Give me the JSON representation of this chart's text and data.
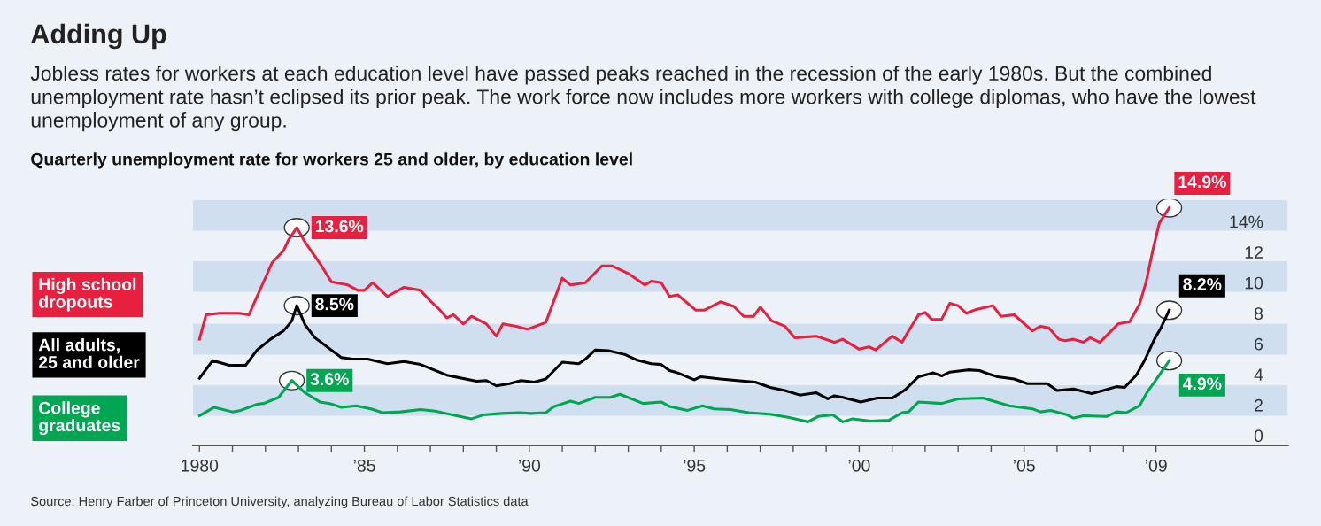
{
  "chart_data": {
    "type": "line",
    "title": "Adding Up",
    "subtitle": "Jobless rates for workers at each education level have passed peaks reached in the recession of the early 1980s. But the combined unemployment rate hasn’t eclipsed its prior peak. The work force now includes more workers with college diplomas, who have the lowest unemployment of any group.",
    "ylabel": "Quarterly unemployment rate for workers 25 and older, by education level",
    "annotations": [
      "Source: Henry Farber of Princeton University, analyzing Bureau of Labor Statistics data"
    ],
    "xlim": [
      1979.8,
      2013
    ],
    "ylim": [
      -0.65,
      15.45
    ],
    "xticks": [
      {
        "value": 1980,
        "label": "1980"
      },
      {
        "value": 1981,
        "label": null
      },
      {
        "value": 1982,
        "label": null
      },
      {
        "value": 1983,
        "label": null
      },
      {
        "value": 1984,
        "label": null
      },
      {
        "value": 1985,
        "label": "’85"
      },
      {
        "value": 1986,
        "label": null
      },
      {
        "value": 1987,
        "label": null
      },
      {
        "value": 1988,
        "label": null
      },
      {
        "value": 1989,
        "label": null
      },
      {
        "value": 1990,
        "label": "’90"
      },
      {
        "value": 1991,
        "label": null
      },
      {
        "value": 1992,
        "label": null
      },
      {
        "value": 1993,
        "label": null
      },
      {
        "value": 1994,
        "label": null
      },
      {
        "value": 1995,
        "label": "’95"
      },
      {
        "value": 1996,
        "label": null
      },
      {
        "value": 1997,
        "label": null
      },
      {
        "value": 1998,
        "label": null
      },
      {
        "value": 1999,
        "label": null
      },
      {
        "value": 2000,
        "label": "’00"
      },
      {
        "value": 2001,
        "label": null
      },
      {
        "value": 2002,
        "label": null
      },
      {
        "value": 2003,
        "label": null
      },
      {
        "value": 2004,
        "label": null
      },
      {
        "value": 2005,
        "label": "’05"
      },
      {
        "value": 2006,
        "label": null
      },
      {
        "value": 2007,
        "label": null
      },
      {
        "value": 2008,
        "label": null
      },
      {
        "value": 2009,
        "label": "’09"
      }
    ],
    "yticks": [
      0,
      2,
      4,
      6,
      8,
      10,
      12,
      {
        "value": 14,
        "label": "14%"
      }
    ],
    "bands": [
      {
        "axis": "y",
        "from": 1.3,
        "to": 3.3,
        "color": "#cfdff0"
      },
      {
        "axis": "y",
        "from": 5.3,
        "to": 7.3,
        "color": "#cfdff0"
      },
      {
        "axis": "y",
        "from": 9.4,
        "to": 11.4,
        "color": "#cfdff0"
      },
      {
        "axis": "y",
        "from": 13.4,
        "to": 15.4,
        "color": "#cfdff0"
      }
    ],
    "grid": false,
    "legend": "left",
    "line_style": "solid",
    "marker": "none",
    "series": [
      {
        "name": "High school\ndropouts",
        "color": "#e8203f",
        "x": [
          1980.0,
          1980.2,
          1980.6,
          1981.2,
          1981.5,
          1982.2,
          1982.55,
          1982.7,
          1982.95,
          1983.2,
          1983.7,
          1984.0,
          1984.5,
          1984.8,
          1985.0,
          1985.25,
          1985.7,
          1986.2,
          1986.7,
          1987.0,
          1987.25,
          1987.5,
          1987.7,
          1988.0,
          1988.25,
          1988.7,
          1989.0,
          1989.2,
          1989.6,
          1989.95,
          1990.5,
          1991.0,
          1991.25,
          1991.7,
          1992.2,
          1992.5,
          1993.0,
          1993.5,
          1993.7,
          1994.0,
          1994.25,
          1994.5,
          1995.05,
          1995.3,
          1995.8,
          1996.2,
          1996.5,
          1996.8,
          1997.0,
          1997.35,
          1997.75,
          1998.05,
          1998.7,
          1999.25,
          1999.5,
          2000.0,
          2000.3,
          2000.5,
          2001.0,
          2001.3,
          2001.5,
          2001.8,
          2002.0,
          2002.2,
          2002.5,
          2002.75,
          2003.0,
          2003.25,
          2003.55,
          2004.05,
          2004.3,
          2004.7,
          2005.25,
          2005.5,
          2005.75,
          2006.05,
          2006.25,
          2006.5,
          2006.8,
          2007.0,
          2007.3,
          2007.85,
          2008.2,
          2008.5,
          2008.7,
          2008.9,
          2009.1,
          2009.4
        ],
        "values": [
          6.3,
          7.9,
          8.0,
          8.0,
          7.9,
          11.3,
          12.1,
          12.8,
          13.6,
          12.65,
          11.1,
          10.05,
          9.85,
          9.5,
          9.5,
          10.0,
          9.1,
          9.7,
          9.5,
          8.8,
          8.3,
          7.7,
          7.9,
          7.3,
          7.8,
          7.3,
          6.5,
          7.3,
          7.15,
          6.95,
          7.4,
          10.3,
          9.85,
          10.0,
          11.1,
          11.1,
          10.6,
          9.85,
          10.1,
          10.0,
          9.1,
          9.2,
          8.2,
          8.2,
          8.75,
          8.45,
          7.8,
          7.8,
          8.4,
          7.5,
          7.15,
          6.4,
          6.5,
          6.1,
          6.3,
          5.65,
          5.8,
          5.6,
          6.5,
          6.1,
          6.85,
          7.9,
          8.05,
          7.6,
          7.6,
          8.65,
          8.5,
          8.0,
          8.25,
          8.5,
          7.8,
          7.9,
          6.85,
          7.15,
          7.05,
          6.3,
          6.2,
          6.3,
          6.1,
          6.4,
          6.1,
          7.3,
          7.45,
          8.6,
          10.05,
          12.1,
          13.9,
          14.9
        ],
        "value_labels": [
          null,
          null,
          null,
          null,
          null,
          null,
          null,
          null,
          "13.6%",
          null,
          null,
          null,
          null,
          null,
          null,
          null,
          null,
          null,
          null,
          null,
          null,
          null,
          null,
          null,
          null,
          null,
          null,
          null,
          null,
          null,
          null,
          null,
          null,
          null,
          null,
          null,
          null,
          null,
          null,
          null,
          null,
          null,
          null,
          null,
          null,
          null,
          null,
          null,
          null,
          null,
          null,
          null,
          null,
          null,
          null,
          null,
          null,
          null,
          null,
          null,
          null,
          null,
          null,
          null,
          null,
          null,
          null,
          null,
          null,
          null,
          null,
          null,
          null,
          null,
          null,
          null,
          null,
          null,
          null,
          null,
          null,
          null,
          null,
          null,
          null,
          null,
          null,
          "14.9%"
        ]
      },
      {
        "name": "All adults,\n25 and older",
        "color": "#000000",
        "x": [
          1980.0,
          1980.4,
          1980.9,
          1981.4,
          1981.75,
          1982.15,
          1982.55,
          1982.8,
          1982.95,
          1983.2,
          1983.5,
          1984.3,
          1984.65,
          1985.1,
          1985.7,
          1986.2,
          1986.7,
          1987.5,
          1988.4,
          1988.7,
          1989.0,
          1989.4,
          1989.75,
          1990.15,
          1990.5,
          1991.0,
          1991.5,
          1991.7,
          1992.0,
          1992.4,
          1992.9,
          1993.25,
          1993.7,
          1994.0,
          1994.25,
          1994.5,
          1995.0,
          1995.2,
          1995.8,
          1996.3,
          1996.85,
          1997.3,
          1997.75,
          1998.2,
          1998.7,
          1999.05,
          1999.25,
          1999.5,
          2000.05,
          2000.55,
          2001.0,
          2001.4,
          2001.8,
          2002.25,
          2002.5,
          2002.75,
          2003.3,
          2003.65,
          2003.9,
          2004.2,
          2004.7,
          2005.1,
          2005.7,
          2006.0,
          2006.5,
          2007.05,
          2007.4,
          2007.8,
          2008.05,
          2008.4,
          2008.65,
          2008.95,
          2009.15,
          2009.4
        ],
        "values": [
          3.75,
          4.9,
          4.6,
          4.6,
          5.6,
          6.3,
          6.85,
          7.5,
          8.5,
          7.25,
          6.4,
          5.1,
          5.0,
          5.0,
          4.7,
          4.85,
          4.65,
          3.95,
          3.55,
          3.6,
          3.25,
          3.4,
          3.6,
          3.5,
          3.7,
          4.8,
          4.7,
          5.0,
          5.6,
          5.55,
          5.3,
          4.95,
          4.7,
          4.65,
          4.25,
          4.1,
          3.65,
          3.85,
          3.7,
          3.6,
          3.5,
          3.15,
          2.95,
          2.65,
          2.8,
          2.4,
          2.6,
          2.5,
          2.2,
          2.45,
          2.45,
          3.0,
          3.85,
          4.1,
          3.9,
          4.15,
          4.3,
          4.25,
          4.05,
          3.85,
          3.7,
          3.4,
          3.4,
          2.95,
          3.05,
          2.75,
          2.95,
          3.2,
          3.15,
          3.95,
          4.9,
          6.3,
          7.05,
          8.2
        ],
        "value_labels": [
          null,
          null,
          null,
          null,
          null,
          null,
          null,
          null,
          "8.5%",
          null,
          null,
          null,
          null,
          null,
          null,
          null,
          null,
          null,
          null,
          null,
          null,
          null,
          null,
          null,
          null,
          null,
          null,
          null,
          null,
          null,
          null,
          null,
          null,
          null,
          null,
          null,
          null,
          null,
          null,
          null,
          null,
          null,
          null,
          null,
          null,
          null,
          null,
          null,
          null,
          null,
          null,
          null,
          null,
          null,
          null,
          null,
          null,
          null,
          null,
          null,
          null,
          null,
          null,
          null,
          null,
          null,
          null,
          null,
          null,
          null,
          null,
          null,
          null,
          "8.2%"
        ]
      },
      {
        "name": "College\ngraduates",
        "color": "#00a651",
        "x": [
          1980.0,
          1980.45,
          1981.0,
          1981.25,
          1981.75,
          1981.95,
          1982.4,
          1982.8,
          1983.2,
          1983.65,
          1983.95,
          1984.3,
          1984.75,
          1985.2,
          1985.55,
          1986.1,
          1986.7,
          1987.15,
          1987.8,
          1988.25,
          1988.6,
          1989.15,
          1989.7,
          1990.05,
          1990.5,
          1990.75,
          1991.25,
          1991.5,
          1992.0,
          1992.45,
          1992.75,
          1993.45,
          1994.0,
          1994.25,
          1994.8,
          1995.25,
          1995.6,
          1996.1,
          1996.65,
          1997.3,
          1997.85,
          1998.45,
          1998.75,
          1999.2,
          1999.5,
          1999.8,
          2000.35,
          2000.9,
          2001.3,
          2001.5,
          2001.8,
          2002.5,
          2003.0,
          2003.75,
          2004.55,
          2005.25,
          2005.5,
          2005.8,
          2006.25,
          2006.5,
          2006.8,
          2007.5,
          2007.8,
          2008.1,
          2008.5,
          2008.75,
          2009.0,
          2009.4
        ],
        "values": [
          1.3,
          1.85,
          1.55,
          1.65,
          2.05,
          2.1,
          2.5,
          3.6,
          2.8,
          2.2,
          2.1,
          1.85,
          1.95,
          1.75,
          1.5,
          1.55,
          1.7,
          1.6,
          1.3,
          1.1,
          1.35,
          1.45,
          1.5,
          1.45,
          1.5,
          1.9,
          2.25,
          2.1,
          2.5,
          2.5,
          2.7,
          2.1,
          2.2,
          1.9,
          1.65,
          1.95,
          1.75,
          1.7,
          1.5,
          1.4,
          1.2,
          0.9,
          1.25,
          1.35,
          0.9,
          1.1,
          0.95,
          1.0,
          1.5,
          1.55,
          2.2,
          2.1,
          2.4,
          2.45,
          1.95,
          1.75,
          1.55,
          1.65,
          1.4,
          1.15,
          1.3,
          1.25,
          1.55,
          1.5,
          1.95,
          2.9,
          3.65,
          4.9
        ],
        "value_labels": [
          null,
          null,
          null,
          null,
          null,
          null,
          null,
          "3.6%",
          null,
          null,
          null,
          null,
          null,
          null,
          null,
          null,
          null,
          null,
          null,
          null,
          null,
          null,
          null,
          null,
          null,
          null,
          null,
          null,
          null,
          null,
          null,
          null,
          null,
          null,
          null,
          null,
          null,
          null,
          null,
          null,
          null,
          null,
          null,
          null,
          null,
          null,
          null,
          null,
          null,
          null,
          null,
          null,
          null,
          null,
          null,
          null,
          null,
          null,
          null,
          null,
          null,
          null,
          null,
          null,
          null,
          null,
          null,
          "4.9%"
        ]
      }
    ]
  }
}
